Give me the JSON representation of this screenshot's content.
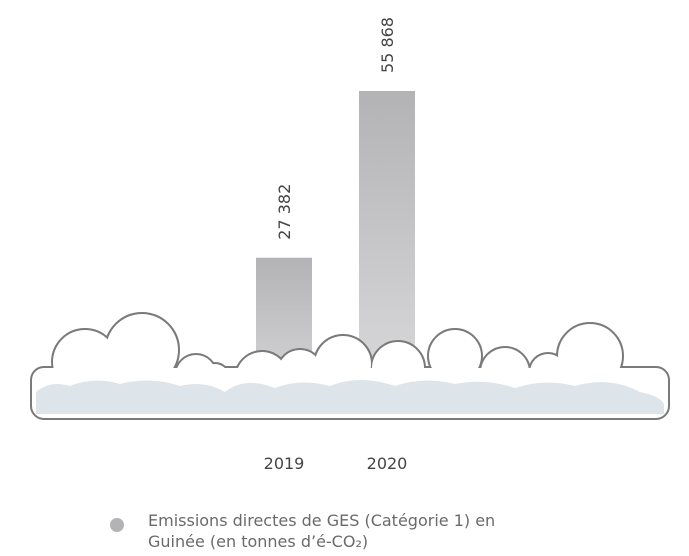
{
  "chart_data": {
    "type": "bar",
    "categories": [
      "2019",
      "2020"
    ],
    "series": [
      {
        "name": "Emissions directes de GES (Catégorie 1) en Guinée (en tonnes d’é-CO₂)",
        "color": "#b3b3b6",
        "values": [
          27382,
          55868
        ],
        "value_labels": [
          "27 382",
          "55 868"
        ]
      }
    ]
  }
}
